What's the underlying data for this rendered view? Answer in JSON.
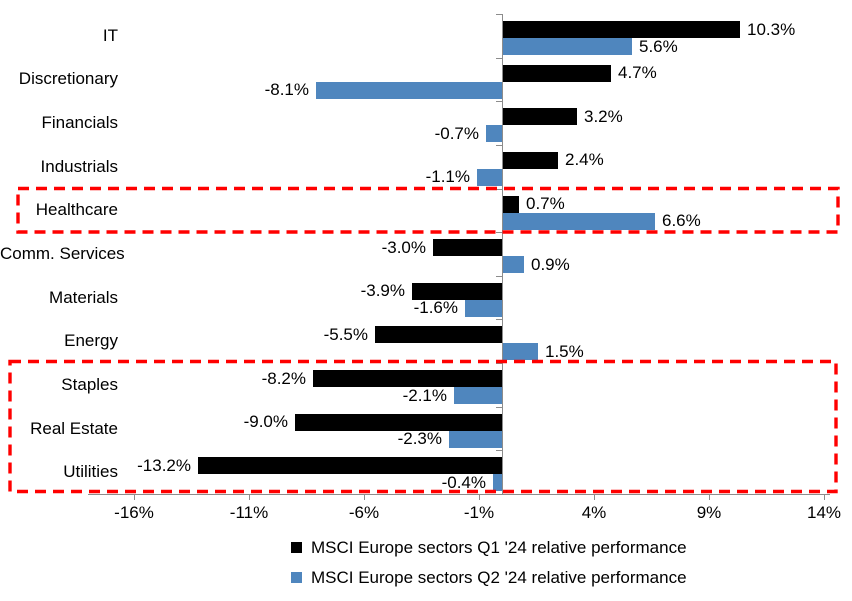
{
  "chart_data": {
    "type": "bar",
    "orientation": "horizontal",
    "title": "",
    "categories": [
      "IT",
      "Discretionary",
      "Financials",
      "Industrials",
      "Healthcare",
      "Comm. Services",
      "Materials",
      "Energy",
      "Staples",
      "Real Estate",
      "Utilities"
    ],
    "series": [
      {
        "name": "MSCI Europe sectors Q1 '24 relative performance",
        "color": "#000000",
        "values": [
          10.3,
          4.7,
          3.2,
          2.4,
          0.7,
          -3.0,
          -3.9,
          -5.5,
          -8.2,
          -9.0,
          -13.2
        ]
      },
      {
        "name": "MSCI Europe sectors Q2 '24 relative performance",
        "color": "#4F86BE",
        "values": [
          5.6,
          -8.1,
          -0.7,
          -1.1,
          6.6,
          0.9,
          -1.6,
          1.5,
          -2.1,
          -2.3,
          -0.4
        ]
      }
    ],
    "value_label_format": "one-decimal-percent",
    "x_axis": {
      "tick_labels": [
        "-16%",
        "-11%",
        "-6%",
        "-1%",
        "4%",
        "9%",
        "14%"
      ],
      "tick_values": [
        -16,
        -11,
        -6,
        -1,
        4,
        9,
        14
      ],
      "range": [
        -18,
        14.25
      ]
    },
    "grid": "off",
    "legend_position": "bottom",
    "axis_color": "#8c8c8c",
    "annotations": {
      "highlight_color": "#FF0000",
      "highlight_boxes": [
        {
          "name": "healthcare-highlight",
          "categories": [
            "Healthcare"
          ]
        },
        {
          "name": "defensive-sectors-highlight",
          "categories": [
            "Staples",
            "Real Estate",
            "Utilities"
          ]
        }
      ]
    }
  }
}
